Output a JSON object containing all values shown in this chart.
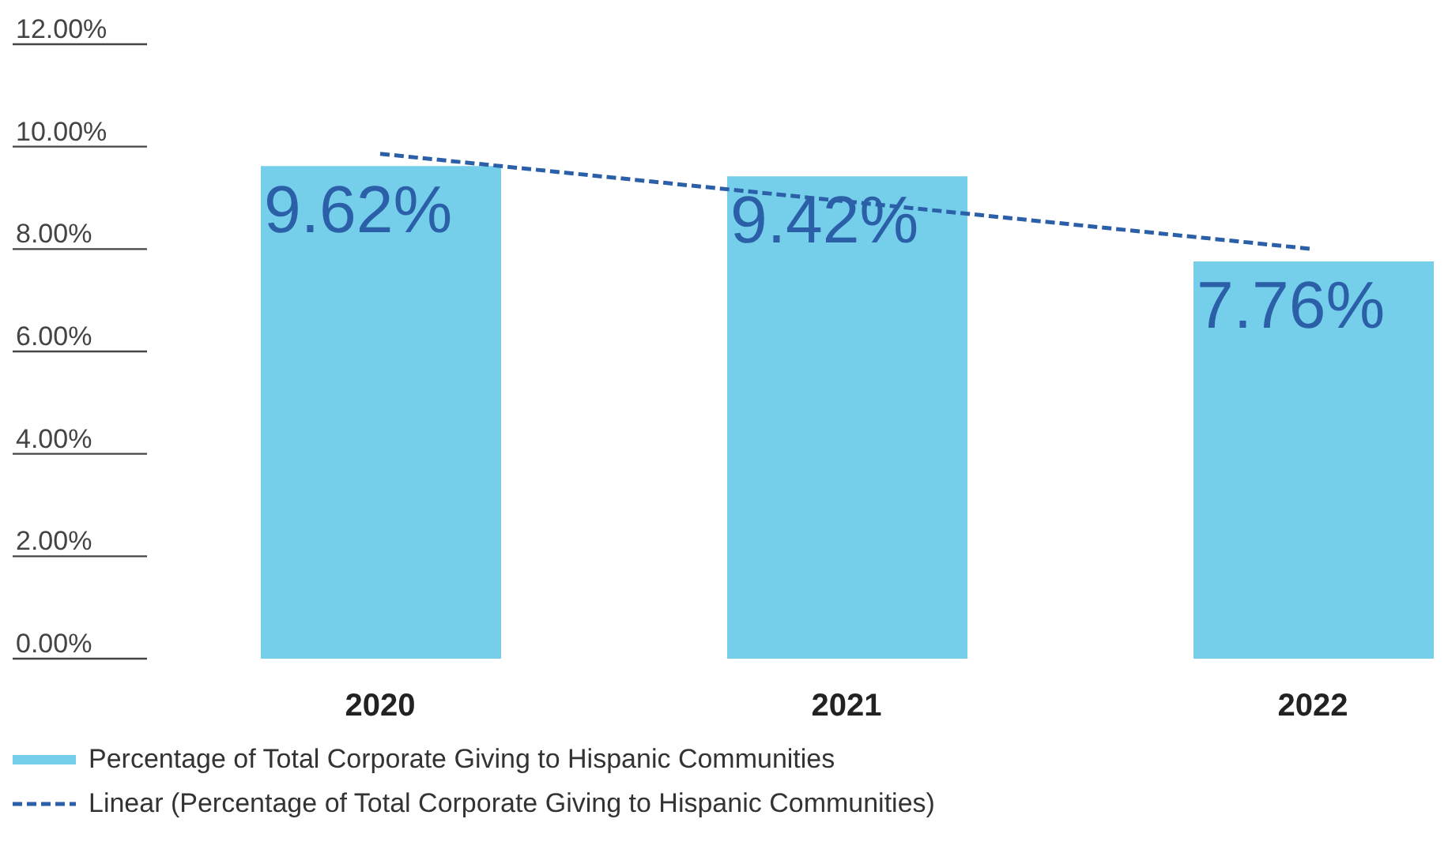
{
  "chart_data": {
    "type": "bar",
    "categories": [
      "2020",
      "2021",
      "2022"
    ],
    "series": [
      {
        "name": "Percentage of Total Corporate Giving to Hispanic Communities",
        "color": "#76cfea",
        "values": [
          9.62,
          9.42,
          7.76
        ],
        "value_labels": [
          "9.62%",
          "9.42%",
          "7.76%"
        ]
      },
      {
        "name": "Linear (Percentage of Total Corporate Giving to Hispanic Communities)",
        "type": "line",
        "color": "#2b5fa8",
        "line_style": "dashed",
        "values": [
          9.86,
          8.93,
          8.0
        ]
      }
    ],
    "ylim": [
      0,
      12
    ],
    "yticks": [
      {
        "value": 0,
        "label": "0.00%"
      },
      {
        "value": 2,
        "label": "2.00%"
      },
      {
        "value": 4,
        "label": "4.00%"
      },
      {
        "value": 6,
        "label": "6.00%"
      },
      {
        "value": 8,
        "label": "8.00%"
      },
      {
        "value": 10,
        "label": "10.00%"
      },
      {
        "value": 12,
        "label": "12.00%"
      }
    ],
    "legend": "bottom left"
  }
}
